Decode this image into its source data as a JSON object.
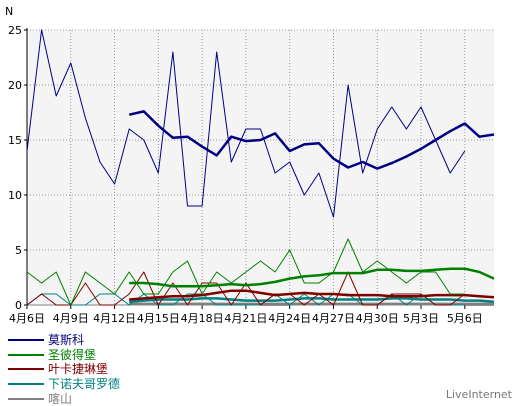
{
  "chart_data": {
    "type": "line",
    "ylabel": "N",
    "ylim": [
      0,
      25
    ],
    "yticks": [
      0,
      5,
      10,
      15,
      20,
      25
    ],
    "x_range": [
      0,
      32
    ],
    "xtick_positions": [
      0,
      3,
      6,
      9,
      12,
      15,
      18,
      21,
      24,
      27,
      30
    ],
    "xtick_labels": [
      "4月6日",
      "4月9日",
      "4月12日",
      "4月15日",
      "4月18日",
      "4月21日",
      "4月24日",
      "4月27日",
      "4月30日",
      "5月3日",
      "5月6日"
    ],
    "grid": true,
    "series": [
      {
        "name": "莫斯科",
        "color": "#000080",
        "daily": [
          14,
          25,
          19,
          22,
          17,
          13,
          11,
          16,
          15,
          12,
          23,
          9,
          9,
          23,
          13,
          16,
          16,
          12,
          13,
          10,
          12,
          8,
          20,
          12,
          16,
          18,
          16,
          18,
          15,
          12,
          14
        ],
        "avg_start": 7,
        "avg": [
          17.3,
          17.6,
          16.3,
          15.2,
          15.3,
          14.4,
          13.6,
          15.3,
          14.9,
          15.0,
          15.6,
          14.0,
          14.6,
          14.7,
          13.3,
          12.5,
          13.0,
          12.4,
          12.9,
          13.5,
          14.2,
          15.0,
          15.8,
          16.5,
          15.3,
          15.5
        ]
      },
      {
        "name": "圣彼得堡",
        "color": "#008000",
        "daily": [
          3,
          2,
          3,
          0,
          3,
          2,
          1,
          3,
          1,
          1,
          3,
          4,
          1,
          3,
          2,
          3,
          4,
          3,
          5,
          2,
          2,
          3,
          6,
          3,
          4,
          3,
          2,
          3,
          3,
          1,
          1
        ],
        "avg_start": 7,
        "avg": [
          2.0,
          2.0,
          1.9,
          1.7,
          1.7,
          1.7,
          1.8,
          1.9,
          1.8,
          1.9,
          2.1,
          2.4,
          2.6,
          2.7,
          2.9,
          2.9,
          2.9,
          3.2,
          3.2,
          3.1,
          3.1,
          3.2,
          3.3,
          3.3,
          3.0,
          2.4
        ]
      },
      {
        "name": "叶卡捷琳堡",
        "color": "#800000",
        "daily": [
          0,
          1,
          0,
          0,
          2,
          0,
          0,
          1,
          3,
          0,
          2,
          0,
          2,
          2,
          0,
          2,
          0,
          1,
          1,
          0,
          1,
          0,
          3,
          0,
          0,
          1,
          1,
          1,
          0,
          0,
          1
        ],
        "avg_start": 7,
        "avg": [
          0.5,
          0.6,
          0.7,
          0.8,
          0.8,
          0.9,
          1.1,
          1.3,
          1.3,
          1.1,
          0.9,
          1.0,
          1.1,
          1.0,
          1.0,
          0.9,
          0.9,
          0.9,
          0.8,
          0.8,
          0.8,
          0.9,
          0.9,
          0.9,
          0.8,
          0.7
        ]
      },
      {
        "name": "下诺夫哥罗德",
        "color": "#008080",
        "daily": [
          0,
          1,
          1,
          0,
          0,
          1,
          1,
          0,
          1,
          0,
          0,
          1,
          1,
          0,
          0,
          0,
          0,
          1,
          0,
          1,
          0,
          1,
          1,
          0,
          0,
          1,
          0,
          1,
          0,
          0,
          0
        ],
        "avg_start": 7,
        "avg": [
          0.3,
          0.4,
          0.5,
          0.5,
          0.5,
          0.6,
          0.6,
          0.5,
          0.4,
          0.4,
          0.4,
          0.5,
          0.6,
          0.6,
          0.5,
          0.5,
          0.5,
          0.5,
          0.6,
          0.6,
          0.5,
          0.5,
          0.5,
          0.4,
          0.4,
          0.3
        ]
      },
      {
        "name": "喀山",
        "color": "#808080",
        "daily": [
          0,
          0,
          0,
          0,
          0,
          0,
          0,
          0,
          0,
          0,
          0,
          0,
          0,
          0,
          0,
          0,
          0,
          1,
          0,
          0,
          0,
          0,
          0,
          0,
          0,
          0,
          0,
          0,
          0,
          0,
          0
        ],
        "avg_start": 7,
        "avg": [
          0.1,
          0.1,
          0.1,
          0.1,
          0.1,
          0.1,
          0.1,
          0.1,
          0.1,
          0.1,
          0.1,
          0.1,
          0.1,
          0.1,
          0.1,
          0.1,
          0.1,
          0.1,
          0.1,
          0.1,
          0.1,
          0.1,
          0.1,
          0.1,
          0.1,
          0.1
        ]
      }
    ]
  },
  "brand": "LiveInternet"
}
